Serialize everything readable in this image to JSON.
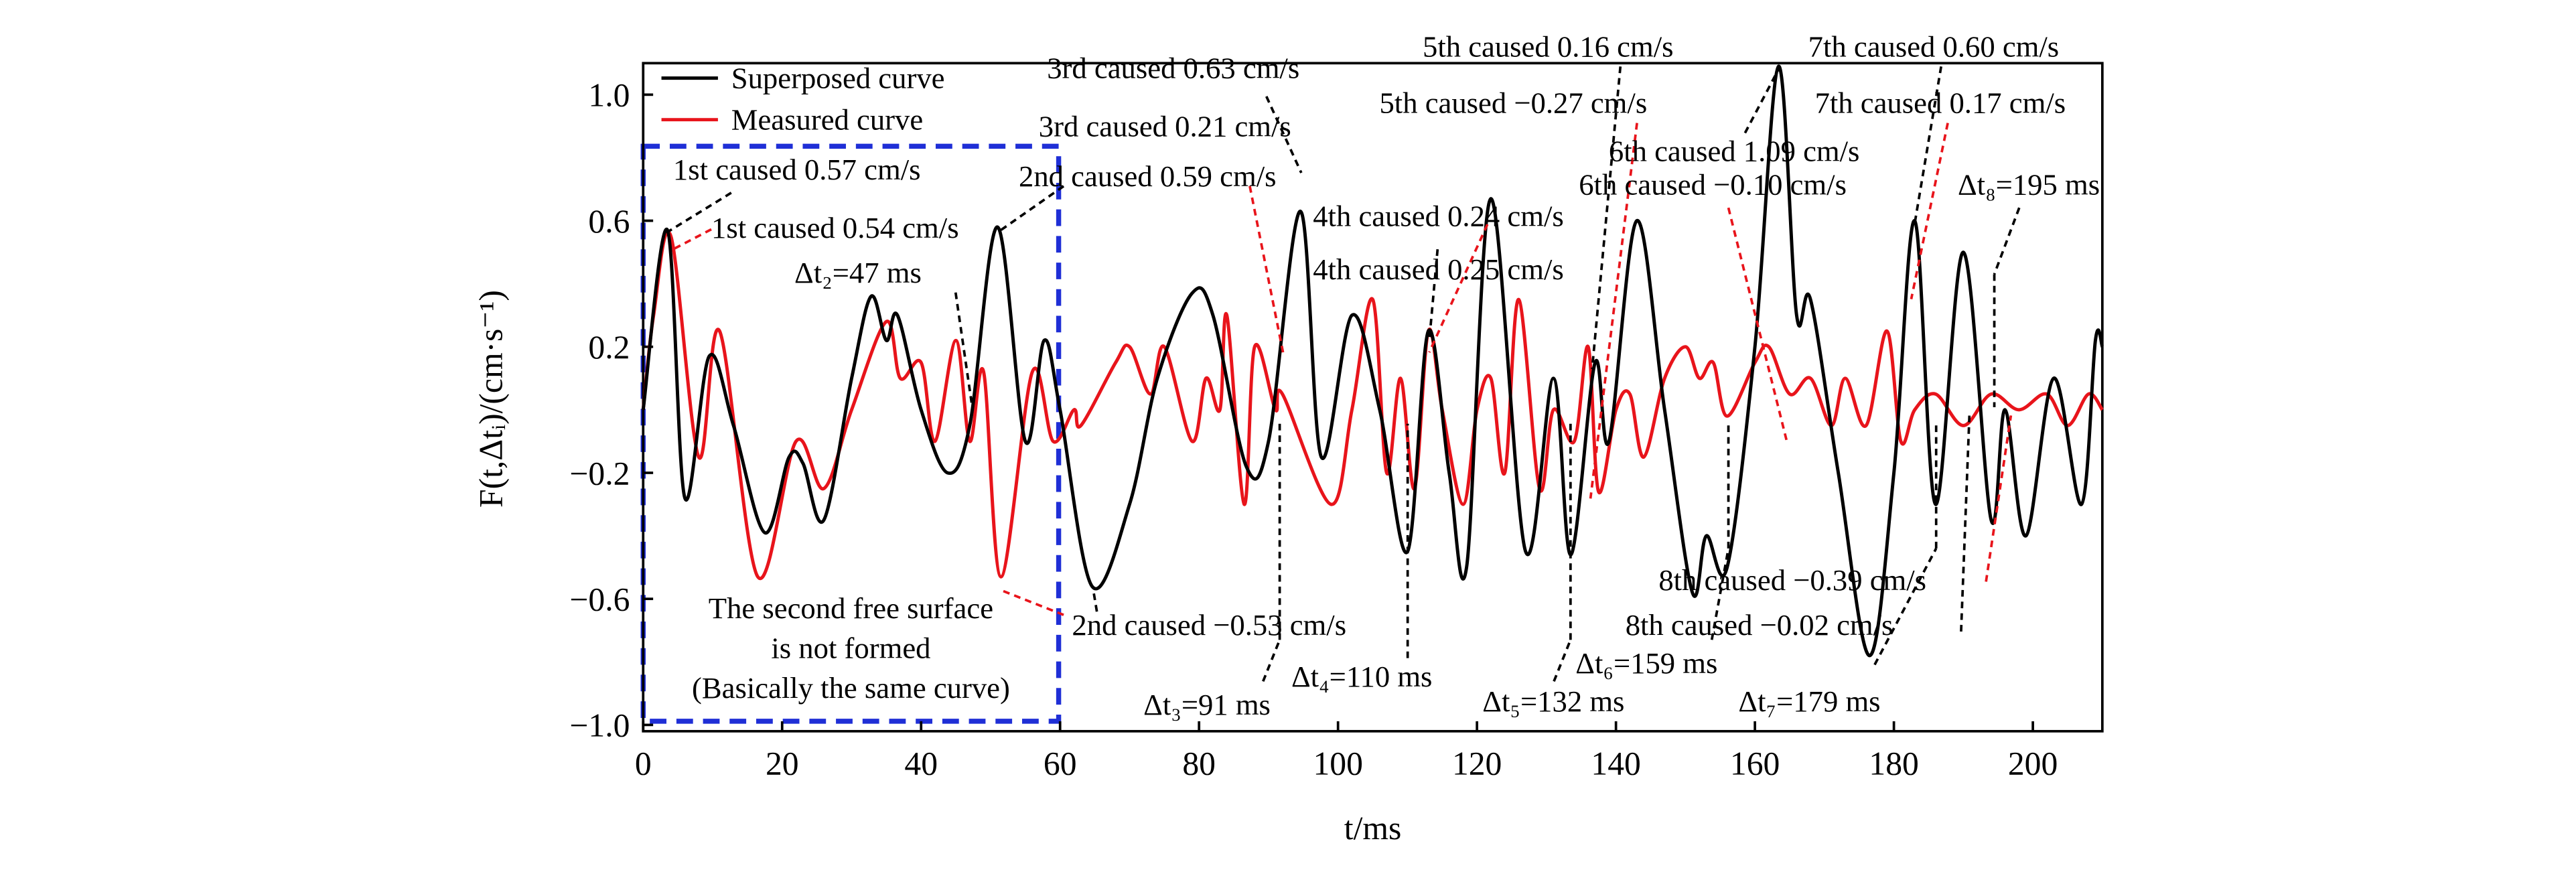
{
  "chart_data": {
    "type": "line",
    "xlabel": "t/ms",
    "ylabel": "F(t,Δtᵢ)/(cm·s⁻¹)",
    "xlim": [
      0,
      210
    ],
    "ylim": [
      -1.02,
      1.1
    ],
    "xticks": [
      0,
      20,
      40,
      60,
      80,
      100,
      120,
      140,
      160,
      180,
      200
    ],
    "yticks": [
      {
        "value": -1.0,
        "label": "−1.0"
      },
      {
        "value": -0.6,
        "label": "−0.6"
      },
      {
        "value": -0.2,
        "label": "−0.2"
      },
      0.2,
      0.6,
      {
        "value": 1.0,
        "label": "1.0"
      }
    ],
    "series": [
      {
        "name": "Superposed curve",
        "color": "#000000",
        "x": [
          0,
          3.5,
          6,
          9.5,
          13,
          17.5,
          21,
          23,
          26,
          30,
          32.8,
          35,
          36.6,
          40,
          43.8,
          47,
          51,
          55,
          57.7,
          60,
          64.6,
          70,
          74,
          79,
          82,
          86.8,
          90,
          94.6,
          97.6,
          102,
          106,
          110,
          113,
          116,
          118.5,
          122,
          127,
          131,
          133.5,
          137,
          139,
          143,
          147,
          151,
          153,
          156,
          160,
          163.4,
          166,
          168,
          172,
          176.5,
          180,
          183,
          186,
          190,
          194,
          196,
          199,
          203,
          207,
          209,
          210
        ],
        "values": [
          0.0,
          0.57,
          -0.28,
          0.17,
          -0.05,
          -0.39,
          -0.15,
          -0.17,
          -0.35,
          0.1,
          0.36,
          0.22,
          0.3,
          0.0,
          -0.2,
          -0.05,
          0.58,
          -0.1,
          0.22,
          0.0,
          -0.56,
          -0.3,
          0.1,
          0.37,
          0.3,
          -0.18,
          -0.1,
          0.63,
          -0.15,
          0.3,
          0.0,
          -0.45,
          0.25,
          -0.2,
          -0.5,
          0.67,
          -0.45,
          0.1,
          -0.46,
          0.15,
          -0.1,
          0.6,
          0.0,
          -0.58,
          -0.4,
          -0.5,
          0.2,
          1.09,
          0.3,
          0.35,
          -0.2,
          -0.78,
          -0.2,
          0.6,
          -0.3,
          0.5,
          -0.35,
          0.0,
          -0.4,
          0.1,
          -0.3,
          0.22,
          0.2
        ]
      },
      {
        "name": "Measured curve",
        "color": "#e8141b",
        "x": [
          0,
          1.5,
          4,
          8,
          11,
          16.5,
          22,
          26,
          30,
          35,
          37,
          40,
          42,
          45,
          47,
          49,
          51.5,
          56,
          59,
          62,
          63,
          68,
          70,
          73,
          75,
          79,
          81,
          83,
          84,
          86.5,
          88,
          91,
          92,
          99,
          102,
          105,
          107,
          109,
          111,
          113,
          115,
          118,
          120,
          122,
          124,
          126,
          129,
          131,
          134,
          136,
          137.5,
          140,
          142,
          144,
          147,
          150,
          152,
          154,
          156,
          160,
          162,
          165,
          168,
          171,
          173,
          176,
          179,
          181,
          183,
          186,
          190,
          194,
          198,
          202,
          205,
          208,
          210
        ],
        "values": [
          0.0,
          0.3,
          0.55,
          -0.15,
          0.25,
          -0.53,
          -0.1,
          -0.25,
          0.0,
          0.28,
          0.1,
          0.15,
          -0.1,
          0.22,
          -0.1,
          0.12,
          -0.53,
          0.12,
          -0.1,
          0.0,
          -0.05,
          0.15,
          0.2,
          0.05,
          0.2,
          -0.1,
          0.1,
          0.0,
          0.3,
          -0.3,
          0.2,
          0.0,
          0.05,
          -0.3,
          0.0,
          0.35,
          -0.2,
          0.1,
          -0.25,
          0.25,
          0.0,
          -0.3,
          0.0,
          0.1,
          -0.2,
          0.35,
          -0.25,
          0.0,
          -0.1,
          0.2,
          -0.26,
          0.0,
          0.05,
          -0.15,
          0.1,
          0.2,
          0.1,
          0.15,
          -0.02,
          0.15,
          0.2,
          0.05,
          0.1,
          -0.05,
          0.1,
          -0.05,
          0.25,
          -0.1,
          0.0,
          0.05,
          -0.05,
          0.05,
          0.0,
          0.05,
          -0.05,
          0.05,
          0.0
        ]
      }
    ],
    "annotations": [
      "3rd caused 0.63 cm/s",
      "3rd caused 0.21 cm/s",
      "2nd caused 0.59 cm/s",
      "1st caused 0.57 cm/s",
      "1st caused 0.54 cm/s",
      "Δt₂=47 ms",
      "5th caused 0.16 cm/s",
      "5th caused −0.27 cm/s",
      "7th caused 0.60 cm/s",
      "7th caused 0.17 cm/s",
      "6th caused 1.09 cm/s",
      "6th caused −0.10 cm/s",
      "Δt₈=195 ms",
      "4th caused 0.24 cm/s",
      "4th caused 0.25 cm/s",
      "2nd caused −0.53 cm/s",
      "Δt₃=91 ms",
      "Δt₄=110 ms",
      "Δt₅=132 ms",
      "Δt₆=159 ms",
      "Δt₇=179 ms",
      "8th caused −0.39 cm/s",
      "8th caused −0.02 cm/s"
    ],
    "box_note": [
      "The second free surface",
      "is not formed",
      "(Basically the same curve)"
    ]
  }
}
